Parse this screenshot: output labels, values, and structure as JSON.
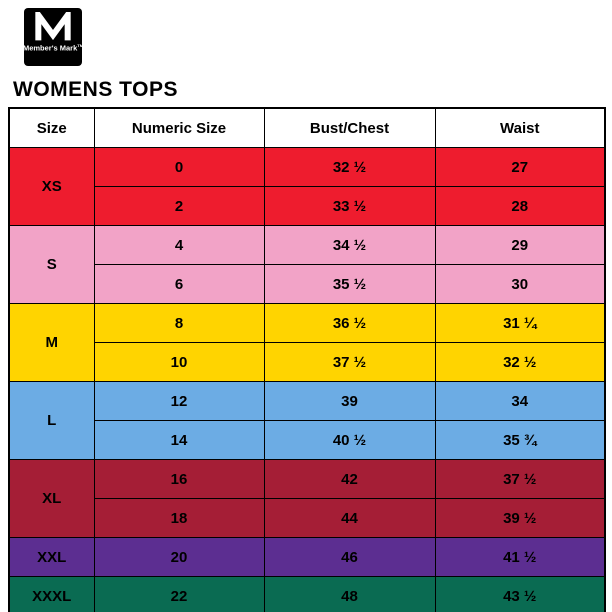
{
  "logo": {
    "brand_name": "Member's Mark",
    "tm": "TM"
  },
  "page_title": "WOMENS TOPS",
  "chart_data": {
    "type": "table",
    "title": "WOMENS TOPS",
    "columns": [
      "Size",
      "Numeric Size",
      "Bust/Chest",
      "Waist"
    ],
    "groups": [
      {
        "size": "XS",
        "color": "#ee1c2e",
        "rows": [
          [
            "0",
            "32 ½",
            "27"
          ],
          [
            "2",
            "33 ½",
            "28"
          ]
        ]
      },
      {
        "size": "S",
        "color": "#f2a3c7",
        "rows": [
          [
            "4",
            "34 ½",
            "29"
          ],
          [
            "6",
            "35 ½",
            "30"
          ]
        ]
      },
      {
        "size": "M",
        "color": "#ffd400",
        "rows": [
          [
            "8",
            "36 ½",
            "31 ¼"
          ],
          [
            "10",
            "37 ½",
            "32 ½"
          ]
        ]
      },
      {
        "size": "L",
        "color": "#6cace4",
        "rows": [
          [
            "12",
            "39",
            "34"
          ],
          [
            "14",
            "40 ½",
            "35 ¾"
          ]
        ]
      },
      {
        "size": "XL",
        "color": "#a51e36",
        "rows": [
          [
            "16",
            "42",
            "37 ½"
          ],
          [
            "18",
            "44",
            "39 ½"
          ]
        ]
      },
      {
        "size": "XXL",
        "color": "#5c2e91",
        "rows": [
          [
            "20",
            "46",
            "41 ½"
          ]
        ]
      },
      {
        "size": "XXXL",
        "color": "#0a6b52",
        "rows": [
          [
            "22",
            "48",
            "43 ½"
          ]
        ]
      }
    ]
  }
}
